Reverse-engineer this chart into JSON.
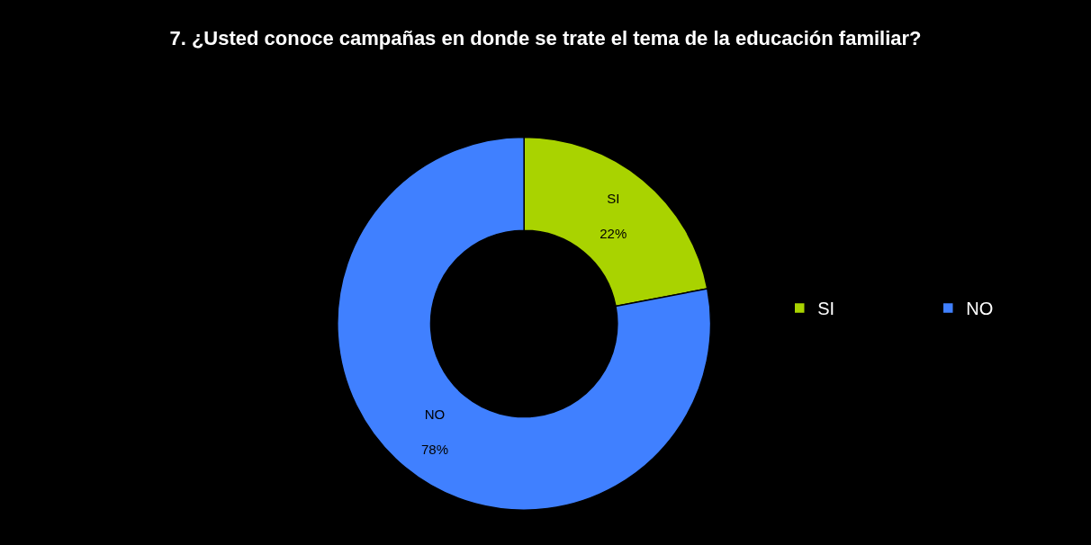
{
  "chart_data": {
    "type": "donut",
    "title": "7. ¿Usted conoce campañas en donde se trate el tema de la educación familiar?",
    "categories": [
      "SI",
      "NO"
    ],
    "values": [
      22,
      78
    ],
    "value_labels": [
      "22%",
      "78%"
    ],
    "colors": [
      "#a9d300",
      "#4080ff"
    ],
    "legend": "right"
  }
}
